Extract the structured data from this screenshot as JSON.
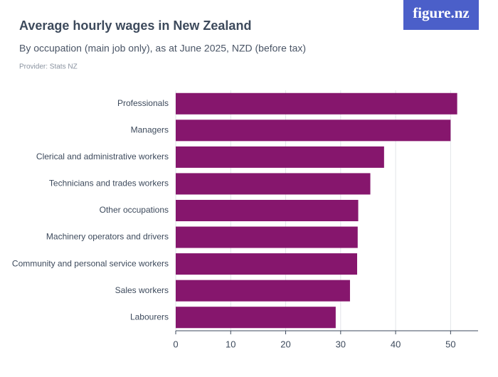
{
  "chart_data": {
    "type": "bar",
    "orientation": "horizontal",
    "title": "Average hourly wages in New Zealand",
    "subtitle": "By occupation (main job only), as at June 2025, NZD (before tax)",
    "source": "Provider: Stats NZ",
    "logo": "figure.nz",
    "categories": [
      "Professionals",
      "Managers",
      "Clerical and administrative workers",
      "Technicians and trades workers",
      "Other occupations",
      "Machinery operators and drivers",
      "Community and personal service workers",
      "Sales workers",
      "Labourers"
    ],
    "values": [
      51.2,
      50.0,
      37.9,
      35.4,
      33.2,
      33.1,
      33.0,
      31.7,
      29.1
    ],
    "color": "#86166d",
    "xlim": [
      0,
      55
    ],
    "xticks": [
      0,
      10,
      20,
      30,
      40,
      50
    ],
    "grid": true
  }
}
